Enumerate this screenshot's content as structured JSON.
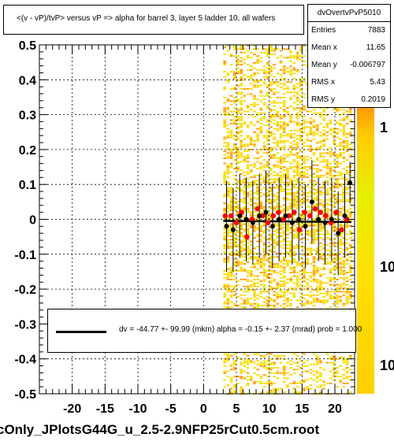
{
  "title": "<(v - vP)/tvP> versus   vP => alpha for barrel 3, layer 5 ladder 10, all wafers",
  "stats": {
    "name": "dvOvertvPvP5010",
    "rows": [
      {
        "label": "Entries",
        "value": "7883"
      },
      {
        "label": "Mean x",
        "value": "11.65"
      },
      {
        "label": "Mean y",
        "value": "-0.006797"
      },
      {
        "label": "RMS x",
        "value": "5.43"
      },
      {
        "label": "RMS y",
        "value": "0.2019"
      }
    ]
  },
  "fit": {
    "text": "dv =  -44.77 +- 99.99 (mkm) alpha =   -0.15 +-  2.37 (mrad) prob = 1.000"
  },
  "footer": "cOnly_JPlotsG44G_u_2.5-2.9NFP25rCut0.5cm.root",
  "colors": {
    "line": "#000000",
    "profile_red": "#ff0000",
    "heat_low": "#ffd600",
    "heat_mid": "#ff9900",
    "heat_high": "#e6e600"
  },
  "chart_data": {
    "type": "scatter",
    "xlim": [
      -25,
      23
    ],
    "ylim": [
      -0.5,
      0.5
    ],
    "xticks": [
      "-20",
      "-15",
      "-10",
      "-5",
      "0",
      "5",
      "10",
      "15",
      "20"
    ],
    "xtick_values": [
      -20,
      -15,
      -10,
      -5,
      0,
      5,
      10,
      15,
      20
    ],
    "yticks": [
      "0.5",
      "0.4",
      "0.3",
      "0.2",
      "0.1",
      "0",
      "-0.1",
      "-0.2",
      "-0.3",
      "-0.4",
      "-0.5"
    ],
    "ytick_values": [
      0.5,
      0.4,
      0.3,
      0.2,
      0.1,
      0,
      -0.1,
      -0.2,
      -0.3,
      -0.4,
      -0.5
    ],
    "zticks": [
      "1",
      "10",
      "10"
    ],
    "grid": true,
    "heatmap_region": {
      "x": [
        3,
        22.5
      ],
      "y": [
        -0.5,
        0.5
      ]
    },
    "profile_black": {
      "x": [
        3.5,
        4.5,
        5.5,
        6.5,
        7.5,
        8.5,
        9.5,
        10.5,
        11.5,
        12.5,
        13.5,
        14.5,
        15.5,
        16.5,
        17.5,
        18.5,
        19.5,
        20.5,
        21.5,
        22.3
      ],
      "y": [
        -0.02,
        -0.03,
        0.01,
        0.0,
        -0.01,
        0.01,
        0.02,
        -0.02,
        0.0,
        0.01,
        -0.01,
        0.0,
        -0.02,
        0.05,
        0.0,
        -0.01,
        0.0,
        -0.04,
        0.01,
        0.105
      ],
      "err": [
        0.13,
        0.12,
        0.12,
        0.12,
        0.12,
        0.12,
        0.12,
        0.12,
        0.12,
        0.12,
        0.12,
        0.12,
        0.12,
        0.12,
        0.12,
        0.12,
        0.12,
        0.12,
        0.12,
        0.06
      ]
    },
    "profile_red": {
      "x": [
        3.3,
        4.2,
        5.0,
        5.8,
        6.6,
        7.4,
        8.2,
        9.0,
        9.8,
        10.6,
        11.4,
        12.2,
        13.0,
        13.8,
        14.6,
        15.4,
        16.2,
        17.0,
        17.8,
        18.6,
        19.4,
        20.2,
        21.0,
        21.8
      ],
      "y": [
        0.01,
        0.01,
        -0.01,
        0.02,
        -0.05,
        0.0,
        0.03,
        0.01,
        -0.01,
        0.01,
        0.02,
        0.0,
        0.01,
        0.02,
        -0.03,
        0.02,
        0.01,
        0.03,
        0.02,
        0.01,
        -0.01,
        0.02,
        -0.03,
        0.0
      ]
    },
    "fit_line": {
      "x": [
        3,
        22.5
      ],
      "y": [
        -0.0045,
        -0.0077
      ]
    }
  }
}
